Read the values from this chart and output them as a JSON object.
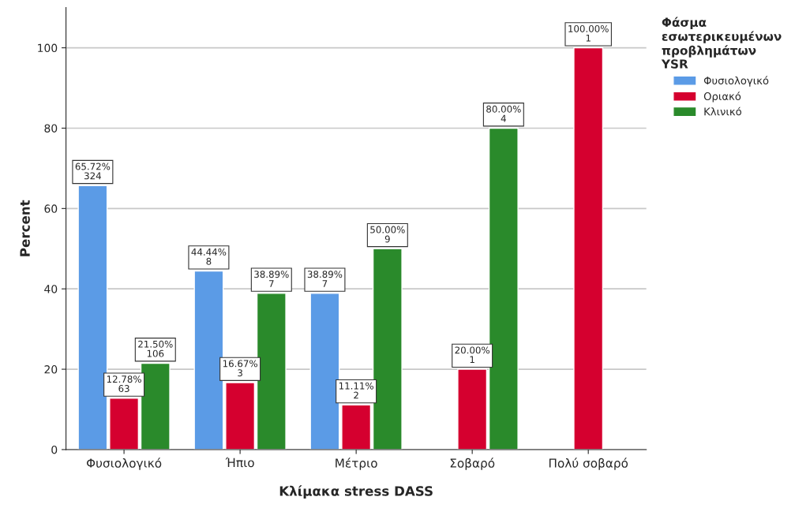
{
  "chart_data": {
    "type": "bar",
    "xlabel": "Κλίμακα stress DASS",
    "ylabel": "Percent",
    "legend_title": "Φάσμα\nεσωτερικευμένων\nπροβλημάτων\nYSR",
    "categories": [
      "Φυσιολογικό",
      "Ήπιο",
      "Μέτριο",
      "Σοβαρό",
      "Πολύ σοβαρό"
    ],
    "series": [
      {
        "name": "Φυσιολογικό",
        "color": "#5b9be6",
        "values": [
          65.72,
          44.44,
          38.89,
          null,
          null
        ],
        "value_labels": [
          "65.72%\n324",
          "44.44%\n8",
          "38.89%\n7",
          null,
          null
        ]
      },
      {
        "name": "Οριακό",
        "color": "#d5002f",
        "values": [
          12.78,
          16.67,
          11.11,
          20.0,
          100.0
        ],
        "value_labels": [
          "12.78%\n63",
          "16.67%\n3",
          "11.11%\n2",
          "20.00%\n1",
          "100.00%\n1"
        ]
      },
      {
        "name": "Κλινικό",
        "color": "#2a8a2b",
        "values": [
          21.5,
          38.89,
          50.0,
          80.0,
          null
        ],
        "value_labels": [
          "21.50%\n106",
          "38.89%\n7",
          "50.00%\n9",
          "80.00%\n4",
          null
        ]
      }
    ],
    "ylim": [
      0,
      110
    ],
    "yticks": [
      0,
      20,
      40,
      60,
      80,
      100
    ],
    "grid": "y",
    "legend": "top right"
  }
}
